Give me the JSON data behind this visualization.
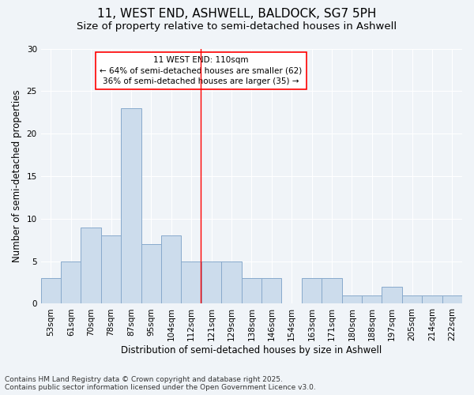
{
  "title": "11, WEST END, ASHWELL, BALDOCK, SG7 5PH",
  "subtitle": "Size of property relative to semi-detached houses in Ashwell",
  "xlabel": "Distribution of semi-detached houses by size in Ashwell",
  "ylabel": "Number of semi-detached properties",
  "bar_labels": [
    "53sqm",
    "61sqm",
    "70sqm",
    "78sqm",
    "87sqm",
    "95sqm",
    "104sqm",
    "112sqm",
    "121sqm",
    "129sqm",
    "138sqm",
    "146sqm",
    "154sqm",
    "163sqm",
    "171sqm",
    "180sqm",
    "188sqm",
    "197sqm",
    "205sqm",
    "214sqm",
    "222sqm"
  ],
  "bar_values": [
    3,
    5,
    9,
    8,
    23,
    7,
    8,
    5,
    5,
    5,
    3,
    3,
    0,
    3,
    3,
    1,
    1,
    2,
    1,
    1,
    1
  ],
  "bar_color": "#ccdcec",
  "bar_edge_color": "#88aacc",
  "ylim": [
    0,
    30
  ],
  "yticks": [
    0,
    5,
    10,
    15,
    20,
    25,
    30
  ],
  "red_line_x": 7.45,
  "annotation_title": "11 WEST END: 110sqm",
  "annotation_line1": "← 64% of semi-detached houses are smaller (62)",
  "annotation_line2": "36% of semi-detached houses are larger (35) →",
  "footer_line1": "Contains HM Land Registry data © Crown copyright and database right 2025.",
  "footer_line2": "Contains public sector information licensed under the Open Government Licence v3.0.",
  "bg_color": "#f0f4f8",
  "plot_bg_color": "#f0f4f8",
  "title_fontsize": 11,
  "subtitle_fontsize": 9.5,
  "axis_label_fontsize": 8.5,
  "tick_fontsize": 7.5,
  "annotation_fontsize": 7.5,
  "footer_fontsize": 6.5
}
